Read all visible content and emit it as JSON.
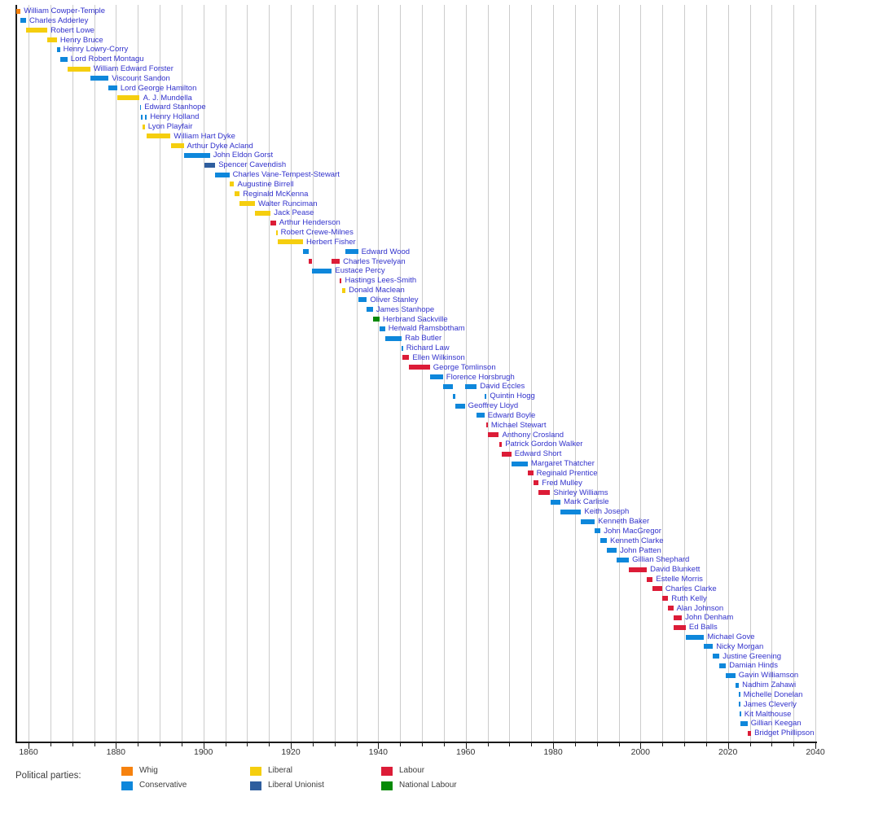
{
  "chart_data": {
    "type": "bar",
    "variant": "gantt-timeline",
    "title": "",
    "xlabel": "",
    "ylabel": "",
    "grid": true,
    "legend_position": "bottom",
    "x_axis": {
      "min": 1857,
      "max": 2040,
      "grid_interval": 5,
      "label_interval": 20,
      "tick_labels": [
        "1860",
        "1880",
        "1900",
        "1920",
        "1940",
        "1960",
        "1980",
        "2000",
        "2020",
        "2040"
      ]
    },
    "ministers": [
      {
        "name": "William Cowper-Temple",
        "party": "Whig",
        "terms": [
          [
            1857.2,
            1858.2
          ]
        ]
      },
      {
        "name": "Charles Adderley",
        "party": "Conservative",
        "terms": [
          [
            1858.2,
            1859.45
          ]
        ]
      },
      {
        "name": "Robert Lowe",
        "party": "Liberal",
        "terms": [
          [
            1859.45,
            1864.3
          ]
        ]
      },
      {
        "name": "Henry Bruce",
        "party": "Liberal",
        "terms": [
          [
            1864.3,
            1866.5
          ]
        ]
      },
      {
        "name": "Henry Lowry-Corry",
        "party": "Conservative",
        "terms": [
          [
            1866.5,
            1867.2
          ]
        ]
      },
      {
        "name": "Lord Robert Montagu",
        "party": "Conservative",
        "terms": [
          [
            1867.2,
            1868.9
          ]
        ]
      },
      {
        "name": "William Edward Forster",
        "party": "Liberal",
        "terms": [
          [
            1868.9,
            1874.1
          ]
        ]
      },
      {
        "name": "Viscount Sandon",
        "party": "Conservative",
        "terms": [
          [
            1874.1,
            1878.3
          ]
        ]
      },
      {
        "name": "Lord George Hamilton",
        "party": "Conservative",
        "terms": [
          [
            1878.3,
            1880.3
          ]
        ]
      },
      {
        "name": "A. J. Mundella",
        "party": "Liberal",
        "terms": [
          [
            1880.3,
            1885.45
          ]
        ]
      },
      {
        "name": "Edward Stanhope",
        "party": "Conservative",
        "terms": [
          [
            1885.45,
            1885.75
          ]
        ]
      },
      {
        "name": "Henry Holland",
        "party": "Conservative",
        "terms": [
          [
            1885.75,
            1886.1
          ],
          [
            1886.6,
            1887.05
          ]
        ]
      },
      {
        "name": "Lyon Playfair",
        "party": "Liberal",
        "terms": [
          [
            1886.1,
            1886.6
          ]
        ]
      },
      {
        "name": "William Hart Dyke",
        "party": "Liberal",
        "terms": [
          [
            1887.1,
            1892.5
          ]
        ]
      },
      {
        "name": "Arthur Dyke Acland",
        "party": "Liberal",
        "terms": [
          [
            1892.6,
            1895.5
          ]
        ]
      },
      {
        "name": "John Eldon Gorst",
        "party": "Conservative",
        "terms": [
          [
            1895.5,
            1901.5
          ]
        ]
      },
      {
        "name": "Spencer Cavendish",
        "party": "Liberal Unionist",
        "terms": [
          [
            1900.2,
            1902.7
          ]
        ]
      },
      {
        "name": "Charles Vane-Tempest-Stewart",
        "party": "Conservative",
        "terms": [
          [
            1902.7,
            1905.95
          ]
        ]
      },
      {
        "name": "Augustine Birrell",
        "party": "Liberal",
        "terms": [
          [
            1905.95,
            1907.05
          ]
        ]
      },
      {
        "name": "Reginald McKenna",
        "party": "Liberal",
        "terms": [
          [
            1907.05,
            1908.3
          ]
        ]
      },
      {
        "name": "Walter Runciman",
        "party": "Liberal",
        "terms": [
          [
            1908.3,
            1911.8
          ]
        ]
      },
      {
        "name": "Jack Pease",
        "party": "Liberal",
        "terms": [
          [
            1911.8,
            1915.4
          ]
        ]
      },
      {
        "name": "Arthur Henderson",
        "party": "Labour",
        "terms": [
          [
            1915.4,
            1916.6
          ]
        ]
      },
      {
        "name": "Robert Crewe-Milnes",
        "party": "Liberal",
        "terms": [
          [
            1916.6,
            1916.95
          ]
        ]
      },
      {
        "name": "Herbert Fisher",
        "party": "Liberal",
        "terms": [
          [
            1916.95,
            1922.8
          ]
        ]
      },
      {
        "name": "Edward Wood",
        "party": "Conservative",
        "terms": [
          [
            1922.8,
            1924.05
          ],
          [
            1932.5,
            1935.4
          ]
        ]
      },
      {
        "name": "Charles Trevelyan",
        "party": "Labour",
        "terms": [
          [
            1924.05,
            1924.85
          ],
          [
            1929.4,
            1931.2
          ]
        ]
      },
      {
        "name": "Eustace Percy",
        "party": "Conservative",
        "terms": [
          [
            1924.85,
            1929.4
          ]
        ]
      },
      {
        "name": "Hastings Lees-Smith",
        "party": "Labour",
        "terms": [
          [
            1931.2,
            1931.65
          ]
        ]
      },
      {
        "name": "Donald Maclean",
        "party": "Liberal",
        "terms": [
          [
            1931.65,
            1932.5
          ]
        ]
      },
      {
        "name": "Oliver Stanley",
        "party": "Conservative",
        "terms": [
          [
            1935.4,
            1937.4
          ]
        ]
      },
      {
        "name": "James Stanhope",
        "party": "Conservative",
        "terms": [
          [
            1937.4,
            1938.8
          ]
        ]
      },
      {
        "name": "Herbrand Sackville",
        "party": "National Labour",
        "terms": [
          [
            1938.8,
            1940.3
          ]
        ]
      },
      {
        "name": "Herwald Ramsbotham",
        "party": "Conservative",
        "terms": [
          [
            1940.3,
            1941.55
          ]
        ]
      },
      {
        "name": "Rab Butler",
        "party": "Conservative",
        "terms": [
          [
            1941.55,
            1945.4
          ]
        ]
      },
      {
        "name": "Richard Law",
        "party": "Conservative",
        "terms": [
          [
            1945.4,
            1945.6
          ]
        ]
      },
      {
        "name": "Ellen Wilkinson",
        "party": "Labour",
        "terms": [
          [
            1945.6,
            1947.1
          ]
        ]
      },
      {
        "name": "George Tomlinson",
        "party": "Labour",
        "terms": [
          [
            1947.1,
            1951.8
          ]
        ]
      },
      {
        "name": "Florence Horsbrugh",
        "party": "Conservative",
        "terms": [
          [
            1951.8,
            1954.8
          ]
        ]
      },
      {
        "name": "David Eccles",
        "party": "Conservative",
        "terms": [
          [
            1954.8,
            1957.05
          ],
          [
            1959.8,
            1962.55
          ]
        ]
      },
      {
        "name": "Quintin Hogg",
        "party": "Conservative",
        "terms": [
          [
            1957.05,
            1957.7
          ],
          [
            1964.3,
            1964.8
          ]
        ]
      },
      {
        "name": "Geoffrey Lloyd",
        "party": "Conservative",
        "terms": [
          [
            1957.7,
            1959.8
          ]
        ]
      },
      {
        "name": "Edward Boyle",
        "party": "Conservative",
        "terms": [
          [
            1962.55,
            1964.3
          ]
        ]
      },
      {
        "name": "Michael Stewart",
        "party": "Labour",
        "terms": [
          [
            1964.8,
            1965.05
          ]
        ]
      },
      {
        "name": "Anthony Crosland",
        "party": "Labour",
        "terms": [
          [
            1965.05,
            1967.6
          ]
        ]
      },
      {
        "name": "Patrick Gordon Walker",
        "party": "Labour",
        "terms": [
          [
            1967.6,
            1968.3
          ]
        ]
      },
      {
        "name": "Edward Short",
        "party": "Labour",
        "terms": [
          [
            1968.3,
            1970.45
          ]
        ]
      },
      {
        "name": "Margaret Thatcher",
        "party": "Conservative",
        "terms": [
          [
            1970.45,
            1974.2
          ]
        ]
      },
      {
        "name": "Reginald Prentice",
        "party": "Labour",
        "terms": [
          [
            1974.2,
            1975.45
          ]
        ]
      },
      {
        "name": "Fred Mulley",
        "party": "Labour",
        "terms": [
          [
            1975.45,
            1976.7
          ]
        ]
      },
      {
        "name": "Shirley Williams",
        "party": "Labour",
        "terms": [
          [
            1976.7,
            1979.35
          ]
        ]
      },
      {
        "name": "Mark Carlisle",
        "party": "Conservative",
        "terms": [
          [
            1979.35,
            1981.7
          ]
        ]
      },
      {
        "name": "Keith Joseph",
        "party": "Conservative",
        "terms": [
          [
            1981.7,
            1986.4
          ]
        ]
      },
      {
        "name": "Kenneth Baker",
        "party": "Conservative",
        "terms": [
          [
            1986.4,
            1989.55
          ]
        ]
      },
      {
        "name": "John MacGregor",
        "party": "Conservative",
        "terms": [
          [
            1989.55,
            1990.85
          ]
        ]
      },
      {
        "name": "Kenneth Clarke",
        "party": "Conservative",
        "terms": [
          [
            1990.85,
            1992.3
          ]
        ]
      },
      {
        "name": "John Patten",
        "party": "Conservative",
        "terms": [
          [
            1992.3,
            1994.55
          ]
        ]
      },
      {
        "name": "Gillian Shephard",
        "party": "Conservative",
        "terms": [
          [
            1994.55,
            1997.35
          ]
        ]
      },
      {
        "name": "David Blunkett",
        "party": "Labour",
        "terms": [
          [
            1997.35,
            2001.45
          ]
        ]
      },
      {
        "name": "Estelle Morris",
        "party": "Labour",
        "terms": [
          [
            2001.45,
            2002.8
          ]
        ]
      },
      {
        "name": "Charles Clarke",
        "party": "Labour",
        "terms": [
          [
            2002.8,
            2004.95
          ]
        ]
      },
      {
        "name": "Ruth Kelly",
        "party": "Labour",
        "terms": [
          [
            2004.95,
            2006.35
          ]
        ]
      },
      {
        "name": "Alan Johnson",
        "party": "Labour",
        "terms": [
          [
            2006.35,
            2007.5
          ]
        ]
      },
      {
        "name": "John Denham",
        "party": "Labour",
        "terms": [
          [
            2007.5,
            2009.45
          ]
        ]
      },
      {
        "name": "Ed Balls",
        "party": "Labour",
        "terms": [
          [
            2007.5,
            2010.35
          ]
        ]
      },
      {
        "name": "Michael Gove",
        "party": "Conservative",
        "terms": [
          [
            2010.35,
            2014.55
          ]
        ]
      },
      {
        "name": "Nicky Morgan",
        "party": "Conservative",
        "terms": [
          [
            2014.55,
            2016.55
          ]
        ]
      },
      {
        "name": "Justine Greening",
        "party": "Conservative",
        "terms": [
          [
            2016.55,
            2018.05
          ]
        ]
      },
      {
        "name": "Damian Hinds",
        "party": "Conservative",
        "terms": [
          [
            2018.05,
            2019.55
          ]
        ]
      },
      {
        "name": "Gavin Williamson",
        "party": "Conservative",
        "terms": [
          [
            2019.55,
            2021.7
          ]
        ]
      },
      {
        "name": "Nadhim Zahawi",
        "party": "Conservative",
        "terms": [
          [
            2021.7,
            2022.5
          ]
        ]
      },
      {
        "name": "Michelle Donelan",
        "party": "Conservative",
        "terms": [
          [
            2022.5,
            2022.6
          ]
        ]
      },
      {
        "name": "James Cleverly",
        "party": "Conservative",
        "terms": [
          [
            2022.55,
            2022.72
          ]
        ]
      },
      {
        "name": "Kit Malthouse",
        "party": "Conservative",
        "terms": [
          [
            2022.72,
            2022.83
          ]
        ]
      },
      {
        "name": "Gillian Keegan",
        "party": "Conservative",
        "terms": [
          [
            2022.83,
            2024.5
          ]
        ]
      },
      {
        "name": "Bridget Phillipson",
        "party": "Labour",
        "terms": [
          [
            2024.5,
            2025.3
          ]
        ]
      }
    ]
  },
  "legend": {
    "title": "Political parties:",
    "parties": [
      {
        "label": "Whig",
        "color": "#F6820E"
      },
      {
        "label": "Conservative",
        "color": "#0E87DB"
      },
      {
        "label": "Liberal",
        "color": "#F5CE0F"
      },
      {
        "label": "Liberal Unionist",
        "color": "#2F5E9E"
      },
      {
        "label": "Labour",
        "color": "#DC1C37"
      },
      {
        "label": "National Labour",
        "color": "#078A07"
      }
    ]
  },
  "colors": {
    "name_text": "#3232CC",
    "gridline": "#CCCCCC",
    "axis": "#1A1A1A",
    "tick_label": "#333333"
  }
}
